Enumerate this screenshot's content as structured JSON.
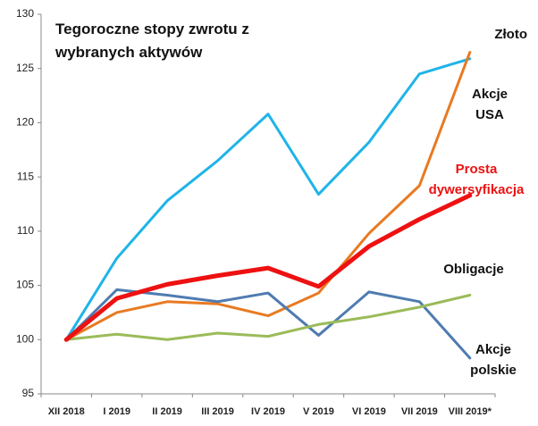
{
  "chart_data": {
    "type": "line",
    "title": "Tegoroczne stopy zwrotu z wybranych aktywów",
    "categories": [
      "XII 2018",
      "I 2019",
      "II 2019",
      "III 2019",
      "IV 2019",
      "V 2019",
      "VI 2019",
      "VII 2019",
      "VIII 2019*"
    ],
    "ylim": [
      95,
      130
    ],
    "yticks": [
      95,
      100,
      105,
      110,
      115,
      120,
      125,
      130
    ],
    "series": [
      {
        "name": "Akcje USA",
        "color": "#1fb4e8",
        "values": [
          100,
          107.5,
          112.8,
          116.5,
          120.8,
          113.4,
          118.2,
          124.5,
          125.9
        ]
      },
      {
        "name": "Złoto",
        "color": "#e87a22",
        "values": [
          100,
          102.5,
          103.5,
          103.3,
          102.2,
          104.3,
          109.8,
          114.2,
          126.5
        ]
      },
      {
        "name": "Akcje polskie",
        "color": "#4f7bb0",
        "values": [
          100,
          104.6,
          104.1,
          103.5,
          104.3,
          100.4,
          104.4,
          103.5,
          98.3
        ]
      },
      {
        "name": "Obligacje",
        "color": "#9bbb59",
        "values": [
          100,
          100.5,
          100,
          100.6,
          100.3,
          101.4,
          102.1,
          103.0,
          104.1
        ]
      },
      {
        "name": "Prosta dywersyfikacja",
        "color": "#ee1111",
        "values": [
          100,
          103.8,
          105.1,
          105.9,
          106.6,
          104.9,
          108.6,
          111.1,
          113.3
        ]
      }
    ]
  }
}
